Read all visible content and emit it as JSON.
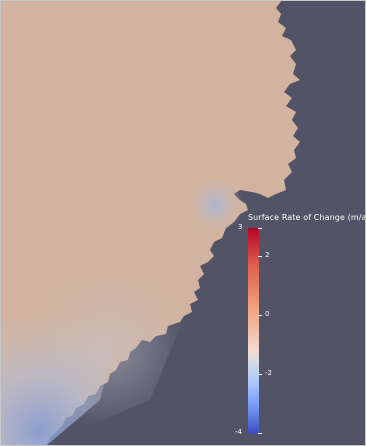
{
  "legend": {
    "title": "Surface Rate of Change (m/a",
    "tick_max": "3",
    "tick_2": "2",
    "tick_0": "0",
    "tick_neg2": "-2",
    "tick_min": "-4"
  },
  "colors": {
    "background": "#525366",
    "land": "#d1b3a0",
    "colormap_high": "#b40426",
    "colormap_mid": "#dddcdc",
    "colormap_low": "#3b4cc0"
  }
}
